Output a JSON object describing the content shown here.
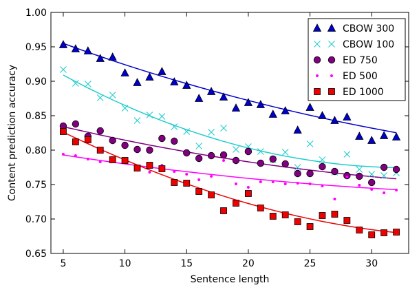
{
  "chart_data": {
    "type": "scatter",
    "title": "",
    "xlabel": "Sentence length",
    "ylabel": "Content prediction accuracy",
    "xlim": [
      4,
      33
    ],
    "ylim": [
      0.65,
      1.0
    ],
    "xticks": [
      5,
      10,
      15,
      20,
      25,
      30
    ],
    "yticks": [
      0.65,
      0.7,
      0.75,
      0.8,
      0.85,
      0.9,
      0.95,
      1.0
    ],
    "xtick_labels": [
      "5",
      "10",
      "15",
      "20",
      "25",
      "30"
    ],
    "ytick_labels": [
      "0.65",
      "0.70",
      "0.75",
      "0.80",
      "0.85",
      "0.90",
      "0.95",
      "1.00"
    ],
    "grid": false,
    "legend_position": "top-right",
    "series": [
      {
        "name": "CBOW 300",
        "marker": "triangle",
        "color": "#0000cc",
        "edge": "#000000",
        "x": [
          5,
          6,
          7,
          8,
          9,
          10,
          11,
          12,
          13,
          14,
          15,
          16,
          17,
          18,
          19,
          20,
          21,
          22,
          23,
          24,
          25,
          26,
          27,
          28,
          29,
          30,
          31,
          32
        ],
        "values": [
          0.953,
          0.947,
          0.944,
          0.933,
          0.935,
          0.912,
          0.898,
          0.906,
          0.914,
          0.899,
          0.894,
          0.875,
          0.885,
          0.877,
          0.861,
          0.869,
          0.866,
          0.852,
          0.857,
          0.829,
          0.862,
          0.85,
          0.843,
          0.848,
          0.82,
          0.814,
          0.821,
          0.819
        ],
        "fit": [
          0.955,
          0.9485,
          0.9422,
          0.936,
          0.93,
          0.9241,
          0.9183,
          0.9127,
          0.9072,
          0.9018,
          0.8966,
          0.8915,
          0.8865,
          0.8816,
          0.8768,
          0.8722,
          0.8676,
          0.8632,
          0.8589,
          0.8547,
          0.8506,
          0.8467,
          0.8428,
          0.8391,
          0.8355,
          0.832,
          0.8286,
          0.8253
        ]
      },
      {
        "name": "CBOW 100",
        "marker": "x",
        "color": "#22cccc",
        "edge": "#22cccc",
        "x": [
          5,
          6,
          7,
          8,
          9,
          10,
          11,
          12,
          13,
          14,
          15,
          16,
          17,
          18,
          19,
          20,
          21,
          22,
          23,
          24,
          25,
          26,
          27,
          28,
          29,
          30,
          31,
          32
        ],
        "values": [
          0.917,
          0.897,
          0.896,
          0.876,
          0.88,
          0.861,
          0.843,
          0.851,
          0.849,
          0.834,
          0.827,
          0.806,
          0.826,
          0.832,
          0.801,
          0.805,
          0.798,
          0.786,
          0.797,
          0.775,
          0.809,
          0.786,
          0.768,
          0.794,
          0.772,
          0.765,
          0.763,
          0.767
        ],
        "fit": [
          0.909,
          0.8995,
          0.8903,
          0.8815,
          0.873,
          0.8649,
          0.8572,
          0.8498,
          0.8427,
          0.836,
          0.8297,
          0.8237,
          0.818,
          0.8127,
          0.8077,
          0.8031,
          0.7988,
          0.7949,
          0.7913,
          0.7881,
          0.7852,
          0.7826,
          0.7804,
          0.7785,
          0.777,
          0.7759,
          0.775,
          0.7745
        ]
      },
      {
        "name": "ED 750",
        "marker": "circle",
        "color": "#800080",
        "edge": "#000000",
        "x": [
          5,
          6,
          7,
          8,
          9,
          10,
          11,
          12,
          13,
          14,
          15,
          16,
          17,
          18,
          19,
          20,
          21,
          22,
          23,
          24,
          25,
          26,
          27,
          28,
          29,
          30,
          31,
          32
        ],
        "values": [
          0.835,
          0.838,
          0.82,
          0.828,
          0.814,
          0.807,
          0.801,
          0.8,
          0.817,
          0.813,
          0.796,
          0.788,
          0.792,
          0.793,
          0.785,
          0.798,
          0.781,
          0.787,
          0.78,
          0.766,
          0.766,
          0.776,
          0.769,
          0.763,
          0.762,
          0.753,
          0.775,
          0.772
        ],
        "fit": [
          0.834,
          0.83,
          0.826,
          0.822,
          0.8182,
          0.8145,
          0.8109,
          0.8074,
          0.804,
          0.8007,
          0.7975,
          0.7944,
          0.7914,
          0.7885,
          0.7857,
          0.783,
          0.7804,
          0.7779,
          0.7755,
          0.7732,
          0.771,
          0.7689,
          0.7669,
          0.765,
          0.7632,
          0.7615,
          0.7599,
          0.7584
        ]
      },
      {
        "name": "ED 500",
        "marker": "dot",
        "color": "#ff00ff",
        "edge": "#ff00ff",
        "x": [
          5,
          6,
          7,
          8,
          9,
          10,
          11,
          12,
          13,
          14,
          15,
          16,
          17,
          18,
          19,
          20,
          21,
          22,
          23,
          24,
          25,
          26,
          27,
          28,
          29,
          30,
          31,
          32
        ],
        "values": [
          0.794,
          0.792,
          0.787,
          0.783,
          0.787,
          0.783,
          0.776,
          0.768,
          0.778,
          0.769,
          0.765,
          0.757,
          0.762,
          0.785,
          0.751,
          0.746,
          0.754,
          0.754,
          0.751,
          0.752,
          0.751,
          0.748,
          0.729,
          0.761,
          0.749,
          0.743,
          0.738,
          0.742
        ],
        "fit": [
          0.793,
          0.7903,
          0.7876,
          0.785,
          0.7825,
          0.78,
          0.7776,
          0.7753,
          0.773,
          0.7708,
          0.7687,
          0.7666,
          0.7646,
          0.7627,
          0.7608,
          0.759,
          0.7573,
          0.7556,
          0.754,
          0.7525,
          0.751,
          0.7496,
          0.7483,
          0.747,
          0.7458,
          0.7447,
          0.7436,
          0.7426
        ]
      },
      {
        "name": "ED 1000",
        "marker": "square",
        "color": "#ee0000",
        "edge": "#000000",
        "x": [
          5,
          6,
          7,
          8,
          9,
          10,
          11,
          12,
          13,
          14,
          15,
          16,
          17,
          18,
          19,
          20,
          21,
          22,
          23,
          24,
          25,
          26,
          27,
          28,
          29,
          30,
          31,
          32
        ],
        "values": [
          0.827,
          0.812,
          0.815,
          0.8,
          0.786,
          0.785,
          0.774,
          0.778,
          0.773,
          0.753,
          0.752,
          0.74,
          0.735,
          0.712,
          0.723,
          0.737,
          0.716,
          0.704,
          0.706,
          0.696,
          0.689,
          0.705,
          0.707,
          0.698,
          0.684,
          0.677,
          0.68,
          0.681
        ],
        "fit": [
          0.826,
          0.8176,
          0.8093,
          0.8012,
          0.7934,
          0.7858,
          0.7784,
          0.7712,
          0.7643,
          0.7576,
          0.7511,
          0.7449,
          0.7389,
          0.7332,
          0.7277,
          0.7225,
          0.7175,
          0.7128,
          0.7083,
          0.7041,
          0.7002,
          0.6965,
          0.6931,
          0.69,
          0.6871,
          0.6845,
          0.6822,
          0.6802
        ]
      }
    ]
  }
}
